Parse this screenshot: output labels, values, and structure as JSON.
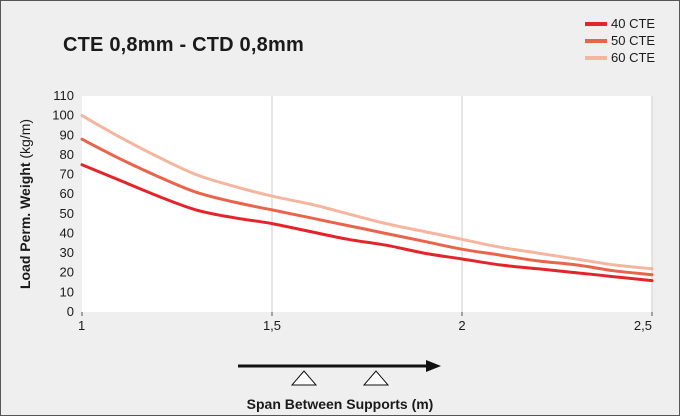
{
  "chart_data": {
    "type": "line",
    "title": "CTE 0,8mm - CTD 0,8mm",
    "xlabel": "Span Between Supports (m)",
    "ylabel_bold": "Load Perm. Weight",
    "ylabel_unit": " (kg/m)",
    "x": [
      1,
      1.1,
      1.2,
      1.3,
      1.4,
      1.5,
      1.6,
      1.7,
      1.8,
      1.9,
      2,
      2.1,
      2.2,
      2.3,
      2.4,
      2.5
    ],
    "x_ticks": [
      1,
      1.5,
      2,
      2.5
    ],
    "x_tick_labels": [
      "1",
      "1,5",
      "2",
      "2,5"
    ],
    "y_ticks": [
      0,
      10,
      20,
      30,
      40,
      50,
      60,
      70,
      80,
      90,
      100,
      110
    ],
    "y_tick_labels": [
      "0",
      "10",
      "20",
      "30",
      "40",
      "50",
      "60",
      "70",
      "80",
      "90",
      "100",
      "110"
    ],
    "xlim": [
      1,
      2.5
    ],
    "ylim": [
      0,
      110
    ],
    "grid": "vertical",
    "legend_position": "top-right",
    "series": [
      {
        "name": "40 CTE",
        "color": "#e3252b",
        "values": [
          75,
          67,
          59,
          52,
          48,
          45,
          41,
          37,
          34,
          30,
          27,
          24,
          22,
          20,
          18,
          16
        ]
      },
      {
        "name": "50 CTE",
        "color": "#e8644b",
        "values": [
          88,
          78,
          69,
          61,
          56,
          52,
          48,
          44,
          40,
          36,
          32,
          29,
          26,
          24,
          21,
          19
        ]
      },
      {
        "name": "60 CTE",
        "color": "#f5b59f",
        "values": [
          100,
          89,
          79,
          70,
          64,
          59,
          55,
          50,
          45,
          41,
          37,
          33,
          30,
          27,
          24,
          22
        ]
      }
    ]
  }
}
